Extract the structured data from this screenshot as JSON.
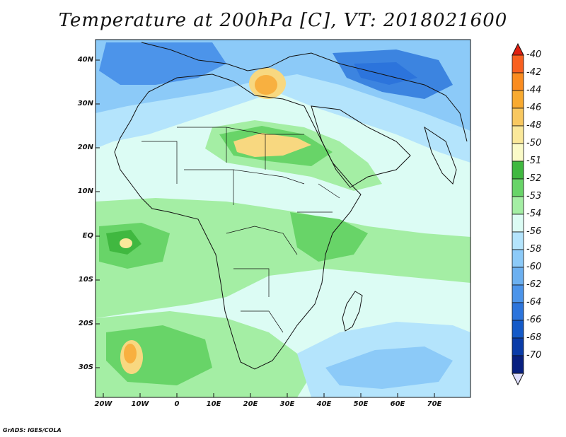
{
  "title": "Temperature at 200hPa [C], VT: 2018021600",
  "footer": "GrADS: IGES/COLA",
  "lat_labels": [
    "40N",
    "30N",
    "20N",
    "10N",
    "EQ",
    "10S",
    "20S",
    "30S"
  ],
  "lon_labels": [
    "20W",
    "10W",
    "0",
    "10E",
    "20E",
    "30E",
    "40E",
    "50E",
    "60E",
    "70E"
  ],
  "colorbar": {
    "labels": [
      "-40",
      "-42",
      "-44",
      "-46",
      "-48",
      "-50",
      "-51",
      "-52",
      "-53",
      "-54",
      "-56",
      "-58",
      "-60",
      "-62",
      "-64",
      "-66",
      "-68",
      "-70"
    ],
    "colors": [
      "#f03010",
      "#f86020",
      "#fa8c20",
      "#f8aa30",
      "#f8c860",
      "#fae89a",
      "#fafac8",
      "#40b840",
      "#68d468",
      "#a4eea4",
      "#dcfcf4",
      "#b4e4fc",
      "#8ccaf8",
      "#6cb0f0",
      "#4c94ea",
      "#2c74dc",
      "#145ac8",
      "#0a3ca8",
      "#082080"
    ],
    "top_color": "#e02010",
    "bottom_color": "#e0e0ff"
  },
  "map": {
    "background": "#dcfcf4",
    "land_green": "#a4eea4",
    "green_mid": "#68d468",
    "green_dark": "#40b840",
    "yellow": "#f8d880",
    "orange": "#f8b040",
    "blue_light": "#b4e4fc",
    "blue_mid": "#6cb0f0",
    "blue_dark": "#3c84e0"
  }
}
